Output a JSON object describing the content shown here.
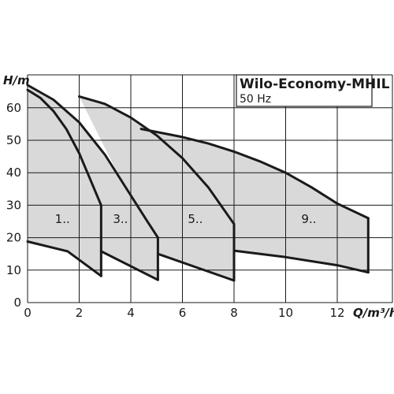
{
  "chart_data": {
    "type": "line",
    "title": "Wilo-Economy-MHIL",
    "subtitle": "50 Hz",
    "ylabel": "H/m",
    "xlabel": "Q/m³/h",
    "xlim": [
      0,
      13.3
    ],
    "ylim": [
      0,
      68
    ],
    "x_ticks": [
      "0",
      "2",
      "4",
      "6",
      "8",
      "10",
      "12"
    ],
    "y_ticks": [
      "0",
      "10",
      "20",
      "30",
      "40",
      "50",
      "60"
    ],
    "grid": true,
    "region_fill": "#d9d9d9",
    "line_color": "#1a1a1a",
    "series": [
      {
        "name": "1..",
        "label_pos": [
          1.35,
          24.5
        ],
        "top": [
          [
            0,
            65.5
          ],
          [
            0.5,
            63
          ],
          [
            1.0,
            59
          ],
          [
            1.5,
            53.5
          ],
          [
            2.0,
            46
          ],
          [
            2.4,
            38.5
          ],
          [
            2.85,
            30
          ]
        ],
        "bottom": [
          [
            0,
            18.8
          ],
          [
            1.55,
            15.8
          ],
          [
            2.85,
            8.2
          ]
        ]
      },
      {
        "name": "3..",
        "label_pos": [
          3.6,
          24.5
        ],
        "top": [
          [
            0,
            67
          ],
          [
            1.0,
            62.5
          ],
          [
            2.0,
            55.5
          ],
          [
            3.0,
            45.5
          ],
          [
            4.0,
            33
          ],
          [
            4.6,
            25.5
          ],
          [
            5.05,
            20
          ]
        ],
        "bottom": [
          [
            2.85,
            15.8
          ],
          [
            5.05,
            7
          ]
        ]
      },
      {
        "name": "5..",
        "label_pos": [
          6.5,
          24.5
        ],
        "top": [
          [
            2.0,
            63.5
          ],
          [
            3.0,
            61.2
          ],
          [
            4.0,
            57
          ],
          [
            5.0,
            51.5
          ],
          [
            6.0,
            44.5
          ],
          [
            7.0,
            35.5
          ],
          [
            8.0,
            24.2
          ]
        ],
        "bottom": [
          [
            5.05,
            15
          ],
          [
            8.0,
            6.8
          ]
        ]
      },
      {
        "name": "9..",
        "label_pos": [
          10.9,
          24.5
        ],
        "top": [
          [
            4.4,
            53.5
          ],
          [
            6.0,
            51
          ],
          [
            7.0,
            49
          ],
          [
            8.0,
            46.5
          ],
          [
            9.0,
            43.5
          ],
          [
            10.0,
            40
          ],
          [
            11.0,
            35.5
          ],
          [
            12.0,
            30.5
          ],
          [
            13.2,
            26
          ]
        ],
        "bottom": [
          [
            8.0,
            16
          ],
          [
            10.0,
            14
          ],
          [
            12.0,
            11.5
          ],
          [
            13.2,
            9.3
          ]
        ]
      }
    ]
  }
}
